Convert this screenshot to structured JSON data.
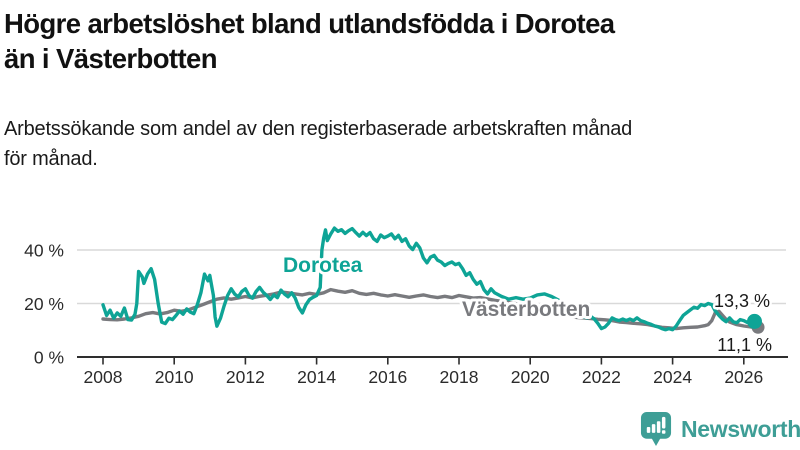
{
  "title": {
    "lines": [
      "Högre arbetslöshet bland utlandsfödda i Dorotea",
      "än i Västerbotten"
    ]
  },
  "subtitle": {
    "lines": [
      "Arbetssökande som andel av den registerbaserade arbetskraften månad",
      "för månad."
    ]
  },
  "branding": {
    "logo_text": "Newsworthy",
    "logo_color": "#3E9E96",
    "logo_icon": "speech-bubble-bar-chart-exclamation"
  },
  "chart_data": {
    "type": "line",
    "unit": "%",
    "grid": true,
    "legend": "inline-labels",
    "x_axis": {
      "ticks": [
        2008,
        2010,
        2012,
        2014,
        2016,
        2018,
        2020,
        2022,
        2024,
        2026
      ]
    },
    "y_axis": {
      "ticks": [
        {
          "value": 0,
          "label": "0 %"
        },
        {
          "value": 20,
          "label": "20 %"
        },
        {
          "value": 40,
          "label": "40 %"
        }
      ],
      "ylim": [
        0,
        50
      ]
    },
    "colors": {
      "axis": "#2e2e2e",
      "gridline": "#d9d9d9",
      "tick_text": "#2b2b2b"
    },
    "series": [
      {
        "name": "Dorotea",
        "color": "#0ea496",
        "end_label": "13,3 %",
        "end_value": 13.3,
        "points": [
          [
            2008.0,
            19.5
          ],
          [
            2008.1,
            15.5
          ],
          [
            2008.2,
            17.5
          ],
          [
            2008.3,
            14.5
          ],
          [
            2008.4,
            16.5
          ],
          [
            2008.5,
            15.2
          ],
          [
            2008.6,
            18.3
          ],
          [
            2008.7,
            14.0
          ],
          [
            2008.8,
            13.8
          ],
          [
            2008.9,
            16.0
          ],
          [
            2008.95,
            20.0
          ],
          [
            2009.0,
            32.0
          ],
          [
            2009.1,
            30.0
          ],
          [
            2009.15,
            27.5
          ],
          [
            2009.25,
            31.0
          ],
          [
            2009.35,
            33.0
          ],
          [
            2009.45,
            29.0
          ],
          [
            2009.55,
            20.0
          ],
          [
            2009.65,
            13.0
          ],
          [
            2009.75,
            12.5
          ],
          [
            2009.85,
            14.5
          ],
          [
            2009.95,
            14.0
          ],
          [
            2010.05,
            15.5
          ],
          [
            2010.15,
            17.2
          ],
          [
            2010.25,
            16.0
          ],
          [
            2010.35,
            18.0
          ],
          [
            2010.45,
            16.8
          ],
          [
            2010.55,
            16.2
          ],
          [
            2010.65,
            19.5
          ],
          [
            2010.75,
            24.0
          ],
          [
            2010.85,
            31.0
          ],
          [
            2010.95,
            28.5
          ],
          [
            2011.0,
            30.5
          ],
          [
            2011.1,
            23.0
          ],
          [
            2011.15,
            15.0
          ],
          [
            2011.2,
            11.5
          ],
          [
            2011.3,
            14.5
          ],
          [
            2011.4,
            19.0
          ],
          [
            2011.5,
            23.0
          ],
          [
            2011.6,
            25.5
          ],
          [
            2011.7,
            23.5
          ],
          [
            2011.8,
            22.5
          ],
          [
            2011.9,
            24.5
          ],
          [
            2012.0,
            25.5
          ],
          [
            2012.1,
            23.0
          ],
          [
            2012.2,
            22.0
          ],
          [
            2012.3,
            24.5
          ],
          [
            2012.4,
            26.0
          ],
          [
            2012.5,
            24.2
          ],
          [
            2012.6,
            23.0
          ],
          [
            2012.7,
            21.5
          ],
          [
            2012.8,
            23.2
          ],
          [
            2012.9,
            22.2
          ],
          [
            2013.0,
            25.0
          ],
          [
            2013.1,
            23.5
          ],
          [
            2013.2,
            22.5
          ],
          [
            2013.3,
            24.0
          ],
          [
            2013.4,
            22.0
          ],
          [
            2013.5,
            18.5
          ],
          [
            2013.6,
            16.5
          ],
          [
            2013.7,
            19.5
          ],
          [
            2013.8,
            21.5
          ],
          [
            2013.9,
            22.3
          ],
          [
            2014.0,
            23.0
          ],
          [
            2014.1,
            26.0
          ],
          [
            2014.15,
            40.0
          ],
          [
            2014.2,
            44.5
          ],
          [
            2014.25,
            47.5
          ],
          [
            2014.3,
            43.5
          ],
          [
            2014.4,
            46.0
          ],
          [
            2014.5,
            48.2
          ],
          [
            2014.6,
            47.0
          ],
          [
            2014.7,
            47.6
          ],
          [
            2014.8,
            46.2
          ],
          [
            2014.9,
            47.2
          ],
          [
            2015.0,
            48.0
          ],
          [
            2015.1,
            46.5
          ],
          [
            2015.2,
            45.2
          ],
          [
            2015.3,
            46.6
          ],
          [
            2015.4,
            45.4
          ],
          [
            2015.5,
            46.5
          ],
          [
            2015.6,
            44.2
          ],
          [
            2015.7,
            43.2
          ],
          [
            2015.8,
            45.6
          ],
          [
            2015.9,
            44.6
          ],
          [
            2016.0,
            45.2
          ],
          [
            2016.1,
            46.0
          ],
          [
            2016.2,
            44.2
          ],
          [
            2016.3,
            45.5
          ],
          [
            2016.4,
            43.2
          ],
          [
            2016.5,
            44.2
          ],
          [
            2016.6,
            41.5
          ],
          [
            2016.7,
            40.2
          ],
          [
            2016.8,
            42.5
          ],
          [
            2016.9,
            40.8
          ],
          [
            2017.0,
            37.0
          ],
          [
            2017.1,
            35.2
          ],
          [
            2017.2,
            37.3
          ],
          [
            2017.3,
            38.0
          ],
          [
            2017.4,
            36.2
          ],
          [
            2017.5,
            35.5
          ],
          [
            2017.6,
            34.2
          ],
          [
            2017.7,
            35.0
          ],
          [
            2017.8,
            35.5
          ],
          [
            2017.9,
            34.5
          ],
          [
            2018.0,
            35.0
          ],
          [
            2018.1,
            33.0
          ],
          [
            2018.2,
            30.5
          ],
          [
            2018.3,
            31.5
          ],
          [
            2018.4,
            29.0
          ],
          [
            2018.5,
            27.2
          ],
          [
            2018.6,
            28.2
          ],
          [
            2018.7,
            25.2
          ],
          [
            2018.8,
            23.6
          ],
          [
            2018.9,
            25.5
          ],
          [
            2019.0,
            24.0
          ],
          [
            2019.2,
            22.6
          ],
          [
            2019.4,
            21.6
          ],
          [
            2019.6,
            22.2
          ],
          [
            2019.8,
            21.6
          ],
          [
            2020.0,
            22.0
          ],
          [
            2020.2,
            23.2
          ],
          [
            2020.4,
            23.6
          ],
          [
            2020.6,
            22.6
          ],
          [
            2020.8,
            21.2
          ],
          [
            2021.0,
            18.5
          ],
          [
            2021.2,
            16.0
          ],
          [
            2021.4,
            15.2
          ],
          [
            2021.5,
            15.0
          ],
          [
            2021.6,
            14.6
          ],
          [
            2021.7,
            15.2
          ],
          [
            2021.8,
            14.2
          ],
          [
            2021.9,
            12.6
          ],
          [
            2022.0,
            10.6
          ],
          [
            2022.1,
            11.2
          ],
          [
            2022.2,
            12.6
          ],
          [
            2022.3,
            14.6
          ],
          [
            2022.4,
            14.0
          ],
          [
            2022.5,
            13.6
          ],
          [
            2022.6,
            14.2
          ],
          [
            2022.7,
            13.6
          ],
          [
            2022.8,
            14.2
          ],
          [
            2022.9,
            13.6
          ],
          [
            2023.0,
            14.6
          ],
          [
            2023.1,
            13.6
          ],
          [
            2023.2,
            13.2
          ],
          [
            2023.3,
            12.6
          ],
          [
            2023.4,
            12.2
          ],
          [
            2023.5,
            11.6
          ],
          [
            2023.6,
            11.2
          ],
          [
            2023.7,
            10.6
          ],
          [
            2023.8,
            10.2
          ],
          [
            2023.9,
            10.6
          ],
          [
            2024.0,
            10.2
          ],
          [
            2024.1,
            11.6
          ],
          [
            2024.2,
            13.6
          ],
          [
            2024.3,
            15.6
          ],
          [
            2024.4,
            16.6
          ],
          [
            2024.5,
            17.6
          ],
          [
            2024.6,
            18.6
          ],
          [
            2024.7,
            18.2
          ],
          [
            2024.8,
            19.6
          ],
          [
            2024.9,
            19.2
          ],
          [
            2025.0,
            20.0
          ],
          [
            2025.1,
            19.6
          ],
          [
            2025.2,
            17.2
          ],
          [
            2025.3,
            15.6
          ],
          [
            2025.4,
            14.2
          ],
          [
            2025.5,
            13.2
          ],
          [
            2025.6,
            14.6
          ],
          [
            2025.7,
            13.2
          ],
          [
            2025.8,
            12.8
          ],
          [
            2025.9,
            14.0
          ],
          [
            2026.0,
            13.6
          ],
          [
            2026.1,
            12.9
          ],
          [
            2026.2,
            13.1
          ],
          [
            2026.3,
            13.3
          ]
        ]
      },
      {
        "name": "Västerbotten",
        "color": "#797a7e",
        "end_label": "11,1 %",
        "end_value": 11.1,
        "points": [
          [
            2008.0,
            14.2
          ],
          [
            2008.2,
            14.0
          ],
          [
            2008.4,
            13.9
          ],
          [
            2008.6,
            14.2
          ],
          [
            2008.8,
            14.6
          ],
          [
            2009.0,
            15.2
          ],
          [
            2009.2,
            16.2
          ],
          [
            2009.4,
            16.6
          ],
          [
            2009.6,
            16.1
          ],
          [
            2009.8,
            16.6
          ],
          [
            2010.0,
            17.5
          ],
          [
            2010.2,
            17.1
          ],
          [
            2010.4,
            17.6
          ],
          [
            2010.6,
            18.6
          ],
          [
            2010.8,
            19.6
          ],
          [
            2011.0,
            20.6
          ],
          [
            2011.2,
            21.6
          ],
          [
            2011.4,
            22.1
          ],
          [
            2011.6,
            21.6
          ],
          [
            2011.8,
            22.1
          ],
          [
            2012.0,
            22.6
          ],
          [
            2012.2,
            22.1
          ],
          [
            2012.4,
            22.7
          ],
          [
            2012.6,
            23.1
          ],
          [
            2012.8,
            23.6
          ],
          [
            2013.0,
            24.3
          ],
          [
            2013.2,
            24.0
          ],
          [
            2013.4,
            23.6
          ],
          [
            2013.6,
            23.2
          ],
          [
            2013.8,
            23.8
          ],
          [
            2014.0,
            23.4
          ],
          [
            2014.2,
            24.0
          ],
          [
            2014.4,
            25.2
          ],
          [
            2014.6,
            24.6
          ],
          [
            2014.8,
            24.2
          ],
          [
            2015.0,
            24.8
          ],
          [
            2015.2,
            23.8
          ],
          [
            2015.4,
            23.4
          ],
          [
            2015.6,
            23.8
          ],
          [
            2015.8,
            23.2
          ],
          [
            2016.0,
            22.8
          ],
          [
            2016.2,
            23.3
          ],
          [
            2016.4,
            22.8
          ],
          [
            2016.6,
            22.3
          ],
          [
            2016.8,
            22.8
          ],
          [
            2017.0,
            23.2
          ],
          [
            2017.2,
            22.6
          ],
          [
            2017.4,
            22.2
          ],
          [
            2017.6,
            22.7
          ],
          [
            2017.8,
            22.2
          ],
          [
            2018.0,
            23.0
          ],
          [
            2018.2,
            22.5
          ],
          [
            2018.4,
            22.0
          ],
          [
            2018.6,
            22.2
          ],
          [
            2019.0,
            21.2
          ],
          [
            2019.5,
            20.2
          ],
          [
            2020.0,
            19.0
          ],
          [
            2020.5,
            17.6
          ],
          [
            2021.0,
            15.6
          ],
          [
            2021.3,
            14.8
          ],
          [
            2021.5,
            14.6
          ],
          [
            2021.7,
            14.4
          ],
          [
            2021.9,
            14.1
          ],
          [
            2022.1,
            13.9
          ],
          [
            2022.3,
            13.6
          ],
          [
            2022.5,
            13.1
          ],
          [
            2022.7,
            12.9
          ],
          [
            2022.9,
            12.6
          ],
          [
            2023.1,
            12.4
          ],
          [
            2023.3,
            12.1
          ],
          [
            2023.5,
            11.6
          ],
          [
            2023.7,
            11.1
          ],
          [
            2023.9,
            10.9
          ],
          [
            2024.1,
            10.6
          ],
          [
            2024.3,
            10.9
          ],
          [
            2024.5,
            11.1
          ],
          [
            2024.7,
            11.2
          ],
          [
            2024.9,
            11.7
          ],
          [
            2025.0,
            12.1
          ],
          [
            2025.1,
            13.6
          ],
          [
            2025.2,
            16.6
          ],
          [
            2025.3,
            17.1
          ],
          [
            2025.4,
            15.6
          ],
          [
            2025.5,
            14.1
          ],
          [
            2025.6,
            13.1
          ],
          [
            2025.8,
            12.1
          ],
          [
            2026.0,
            11.6
          ],
          [
            2026.2,
            11.2
          ],
          [
            2026.4,
            11.1
          ]
        ]
      }
    ]
  }
}
